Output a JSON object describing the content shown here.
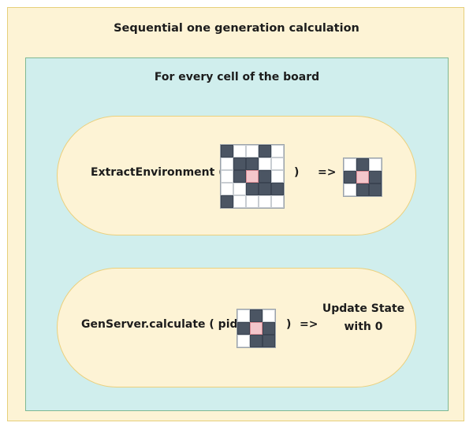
{
  "title": "Sequential one generation calculation",
  "loop_label": "For every cell of the board",
  "step1": {
    "call": "ExtractEnvironment (",
    "close": ")",
    "arrow": "=>",
    "board": {
      "cols": 5,
      "rows": [
        "10010",
        "01100",
        "01210",
        "00111",
        "10000"
      ]
    },
    "environment": {
      "cols": 3,
      "rows": [
        "010",
        "121",
        "011"
      ]
    }
  },
  "step2": {
    "call": "GenServer.calculate ( pid,",
    "close": ")",
    "arrow": "=>",
    "result_line1": "Update State",
    "result_line2": "with 0",
    "environment": {
      "cols": 3,
      "rows": [
        "010",
        "121",
        "011"
      ]
    }
  },
  "colors": {
    "outer_fill": "#fdf3d5",
    "inner_fill": "#d0eeed",
    "filled_cell": "#4b5563",
    "center_cell": "#f3c6cb"
  }
}
